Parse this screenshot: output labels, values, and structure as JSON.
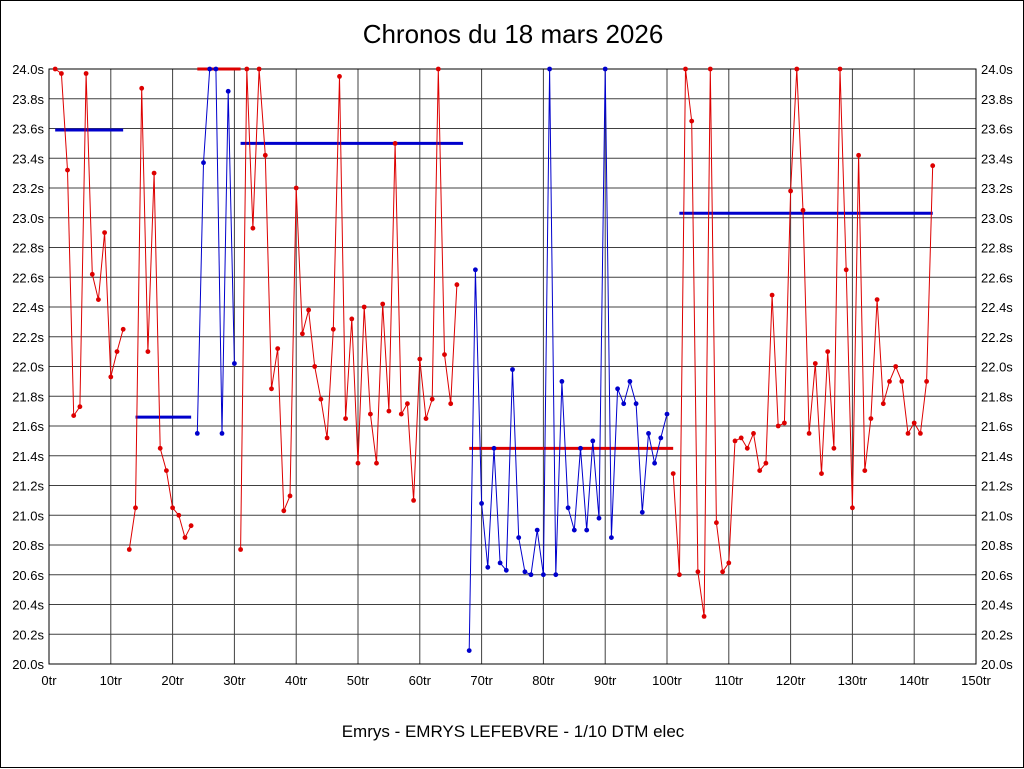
{
  "chart_data": {
    "type": "line",
    "title": "Chronos du 18 mars 2026",
    "caption": "Emrys - EMRYS LEFEBVRE - 1/10 DTM elec",
    "xlabel": "",
    "ylabel": "",
    "x_unit": "tr",
    "y_unit": "s",
    "xlim": [
      0,
      150
    ],
    "ylim": [
      20.0,
      24.0
    ],
    "grid": true,
    "legend": "none",
    "x_ticks": [
      "0tr",
      "10tr",
      "20tr",
      "30tr",
      "40tr",
      "50tr",
      "60tr",
      "70tr",
      "80tr",
      "90tr",
      "100tr",
      "110tr",
      "120tr",
      "130tr",
      "140tr",
      "150tr"
    ],
    "y_ticks": [
      "24.0s",
      "23.8s",
      "23.6s",
      "23.4s",
      "23.2s",
      "23.0s",
      "22.8s",
      "22.6s",
      "22.4s",
      "22.2s",
      "22.0s",
      "21.8s",
      "21.6s",
      "21.4s",
      "21.2s",
      "21.0s",
      "20.8s",
      "20.6s",
      "20.4s",
      "20.2s",
      "20.0s"
    ],
    "colors": {
      "red": "#dd0000",
      "blue": "#0000cc",
      "grid": "#404040",
      "text": "#000000",
      "background": "#ffffff"
    },
    "sessions": [
      {
        "name": "run-1",
        "color": "red",
        "start_lap": 1,
        "lap_times": [
          24.0,
          23.97,
          23.32,
          21.67,
          21.73,
          23.97,
          22.62,
          22.45,
          22.9,
          21.93,
          22.1,
          22.25
        ]
      },
      {
        "name": "run-2",
        "color": "red",
        "start_lap": 13,
        "lap_times": [
          20.77,
          21.05,
          23.87,
          22.1,
          23.3,
          21.45,
          21.3,
          21.05,
          21.0,
          20.85,
          20.93
        ]
      },
      {
        "name": "run-3",
        "color": "blue",
        "start_lap": 24,
        "lap_times": [
          21.55,
          23.37,
          24.0,
          24.0,
          21.55,
          23.85,
          22.02
        ]
      },
      {
        "name": "run-4",
        "color": "red",
        "start_lap": 31,
        "lap_times": [
          20.77,
          24.0,
          22.93,
          24.0,
          23.42,
          21.85,
          22.12,
          21.03,
          21.13,
          23.2,
          22.22,
          22.38,
          22.0,
          21.78,
          21.52,
          22.25,
          23.95,
          21.65,
          22.32,
          21.35,
          22.4,
          21.68,
          21.35,
          22.42,
          21.7,
          23.5,
          21.68,
          21.75,
          21.1,
          22.05,
          21.65,
          21.78,
          24.0,
          22.08,
          21.75,
          22.55
        ]
      },
      {
        "name": "run-5",
        "color": "blue",
        "start_lap": 68,
        "lap_times": [
          20.09,
          22.65,
          21.08,
          20.65,
          21.45,
          20.68,
          20.63,
          21.98,
          20.85,
          20.62,
          20.6,
          20.9,
          20.6,
          24.0,
          20.6,
          21.9,
          21.05,
          20.9,
          21.45,
          20.9,
          21.5,
          20.98,
          24.0,
          20.85,
          21.85,
          21.75,
          21.9,
          21.75,
          21.02,
          21.55,
          21.35,
          21.52,
          21.68
        ]
      },
      {
        "name": "run-6",
        "color": "red",
        "start_lap": 101,
        "lap_times": [
          21.28,
          20.6,
          24.0,
          23.65,
          20.62,
          20.32,
          24.0,
          20.95,
          20.62,
          20.68,
          21.5,
          21.52,
          21.45,
          21.55,
          21.3,
          21.35,
          22.48,
          21.6,
          21.62,
          23.18,
          24.0,
          23.05,
          21.55,
          22.02,
          21.28,
          22.1,
          21.45,
          24.0,
          22.65,
          21.05,
          23.42,
          21.3,
          21.65,
          22.45,
          21.75,
          21.9,
          22.0,
          21.9,
          21.55,
          21.62,
          21.55,
          21.9,
          23.35
        ]
      }
    ],
    "average_segments": [
      {
        "color": "blue",
        "value": 23.59,
        "from_lap": 1,
        "to_lap": 12
      },
      {
        "color": "blue",
        "value": 21.66,
        "from_lap": 14,
        "to_lap": 23
      },
      {
        "color": "red",
        "value": 24.0,
        "from_lap": 24,
        "to_lap": 31
      },
      {
        "color": "blue",
        "value": 23.5,
        "from_lap": 31,
        "to_lap": 67
      },
      {
        "color": "red",
        "value": 21.45,
        "from_lap": 68,
        "to_lap": 101
      },
      {
        "color": "blue",
        "value": 23.03,
        "from_lap": 102,
        "to_lap": 143
      }
    ]
  }
}
